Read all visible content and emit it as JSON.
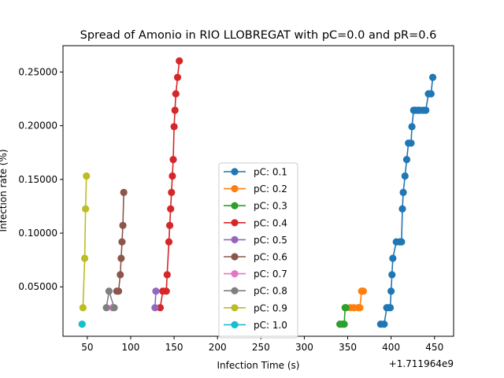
{
  "chart_data": {
    "type": "line",
    "title": "Spread of Amonio in RIO LLOBREGAT with pC=0.0 and pR=0.6",
    "xlabel": "Infection Time (s)",
    "ylabel": "Infection rate (%)",
    "x_offset_label": "+1.711964e9",
    "xlim": [
      22,
      472
    ],
    "ylim": [
      0.004,
      0.2745
    ],
    "xticks": [
      50,
      100,
      150,
      200,
      250,
      300,
      350,
      400,
      450
    ],
    "xtick_labels": [
      "50",
      "100",
      "150",
      "200",
      "250",
      "300",
      "350",
      "400",
      "450"
    ],
    "yticks": [
      0.05,
      0.1,
      0.15,
      0.2,
      0.25
    ],
    "ytick_labels": [
      "0.05000",
      "0.10000",
      "0.15000",
      "0.20000",
      "0.25000"
    ],
    "legend_position": "lower-center",
    "grid": false,
    "series": [
      {
        "name": "pC: 0.1",
        "color": "#1f77b4",
        "x": [
          388,
          392,
          395,
          397,
          399,
          400,
          401,
          402,
          406,
          410,
          412,
          413,
          414,
          416,
          418,
          420,
          423,
          424,
          426,
          428,
          431,
          433,
          437,
          440,
          443,
          446,
          448
        ],
        "y": [
          0.0153,
          0.0153,
          0.0306,
          0.0306,
          0.0306,
          0.046,
          0.0613,
          0.0766,
          0.0919,
          0.0919,
          0.0919,
          0.1226,
          0.1379,
          0.1532,
          0.1685,
          0.1838,
          0.1838,
          0.1991,
          0.2144,
          0.2144,
          0.2144,
          0.2144,
          0.2144,
          0.2144,
          0.2297,
          0.2297,
          0.245
        ]
      },
      {
        "name": "pC: 0.2",
        "color": "#ff7f0e",
        "x": [
          353,
          357,
          362,
          364,
          366,
          368
        ],
        "y": [
          0.0306,
          0.0306,
          0.0306,
          0.0306,
          0.046,
          0.046
        ]
      },
      {
        "name": "pC: 0.3",
        "color": "#2ca02c",
        "x": [
          341,
          344,
          346,
          347,
          348
        ],
        "y": [
          0.0153,
          0.0153,
          0.0153,
          0.0306,
          0.0306
        ]
      },
      {
        "name": "pC: 0.4",
        "color": "#d62728",
        "x": [
          134,
          137,
          141,
          142,
          144,
          145,
          146,
          147,
          148,
          149,
          150,
          151,
          152,
          154,
          156
        ],
        "y": [
          0.0306,
          0.046,
          0.046,
          0.0613,
          0.0919,
          0.1072,
          0.1226,
          0.1379,
          0.1532,
          0.1685,
          0.1991,
          0.2144,
          0.2297,
          0.245,
          0.2603
        ]
      },
      {
        "name": "pC: 0.5",
        "color": "#9467bd",
        "x": [
          128,
          129
        ],
        "y": [
          0.0306,
          0.046
        ]
      },
      {
        "name": "pC: 0.6",
        "color": "#8c564b",
        "x": [
          84,
          86,
          88,
          89,
          90,
          91,
          92
        ],
        "y": [
          0.046,
          0.046,
          0.0613,
          0.0766,
          0.0919,
          0.1072,
          0.1379
        ]
      },
      {
        "name": "pC: 0.7",
        "color": "#e377c2",
        "x": [
          79
        ],
        "y": [
          0.0306
        ]
      },
      {
        "name": "pC: 0.8",
        "color": "#7f7f7f",
        "x": [
          72,
          75,
          81
        ],
        "y": [
          0.0306,
          0.046,
          0.0306
        ]
      },
      {
        "name": "pC: 0.9",
        "color": "#bcbd22",
        "x": [
          45,
          47,
          48,
          49
        ],
        "y": [
          0.0306,
          0.0766,
          0.1226,
          0.1532
        ]
      },
      {
        "name": "pC: 1.0",
        "color": "#17becf",
        "x": [
          44
        ],
        "y": [
          0.0153
        ]
      }
    ]
  }
}
